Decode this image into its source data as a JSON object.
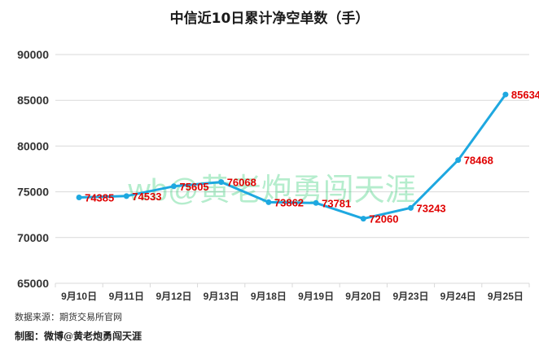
{
  "title": "中信近10日累计净空单数（手）",
  "watermark": "wb@黄老炮勇闯天涯",
  "footer": {
    "source": "数据来源：期货交易所官网",
    "credit": "制图：微博@黄老炮勇闯天涯"
  },
  "colors": {
    "line": "#1EA8E0",
    "marker": "#1EA8E0",
    "data_label": "#E00000",
    "grid": "#D9D9D9",
    "axis_text": "#333333",
    "watermark": "#2ECC71"
  },
  "chart_data": {
    "type": "line",
    "title": "中信近10日累计净空单数（手）",
    "xlabel": "",
    "ylabel": "",
    "categories": [
      "9月10日",
      "9月11日",
      "9月12日",
      "9月13日",
      "9月18日",
      "9月19日",
      "9月20日",
      "9月23日",
      "9月24日",
      "9月25日"
    ],
    "series": [
      {
        "values": [
          74385,
          74533,
          75605,
          76068,
          73862,
          73781,
          72060,
          73243,
          78468,
          85634
        ]
      }
    ],
    "ylim": [
      65000,
      90000
    ],
    "yticks": [
      65000,
      70000,
      75000,
      80000,
      85000,
      90000
    ],
    "grid": true,
    "data_labels": true
  }
}
